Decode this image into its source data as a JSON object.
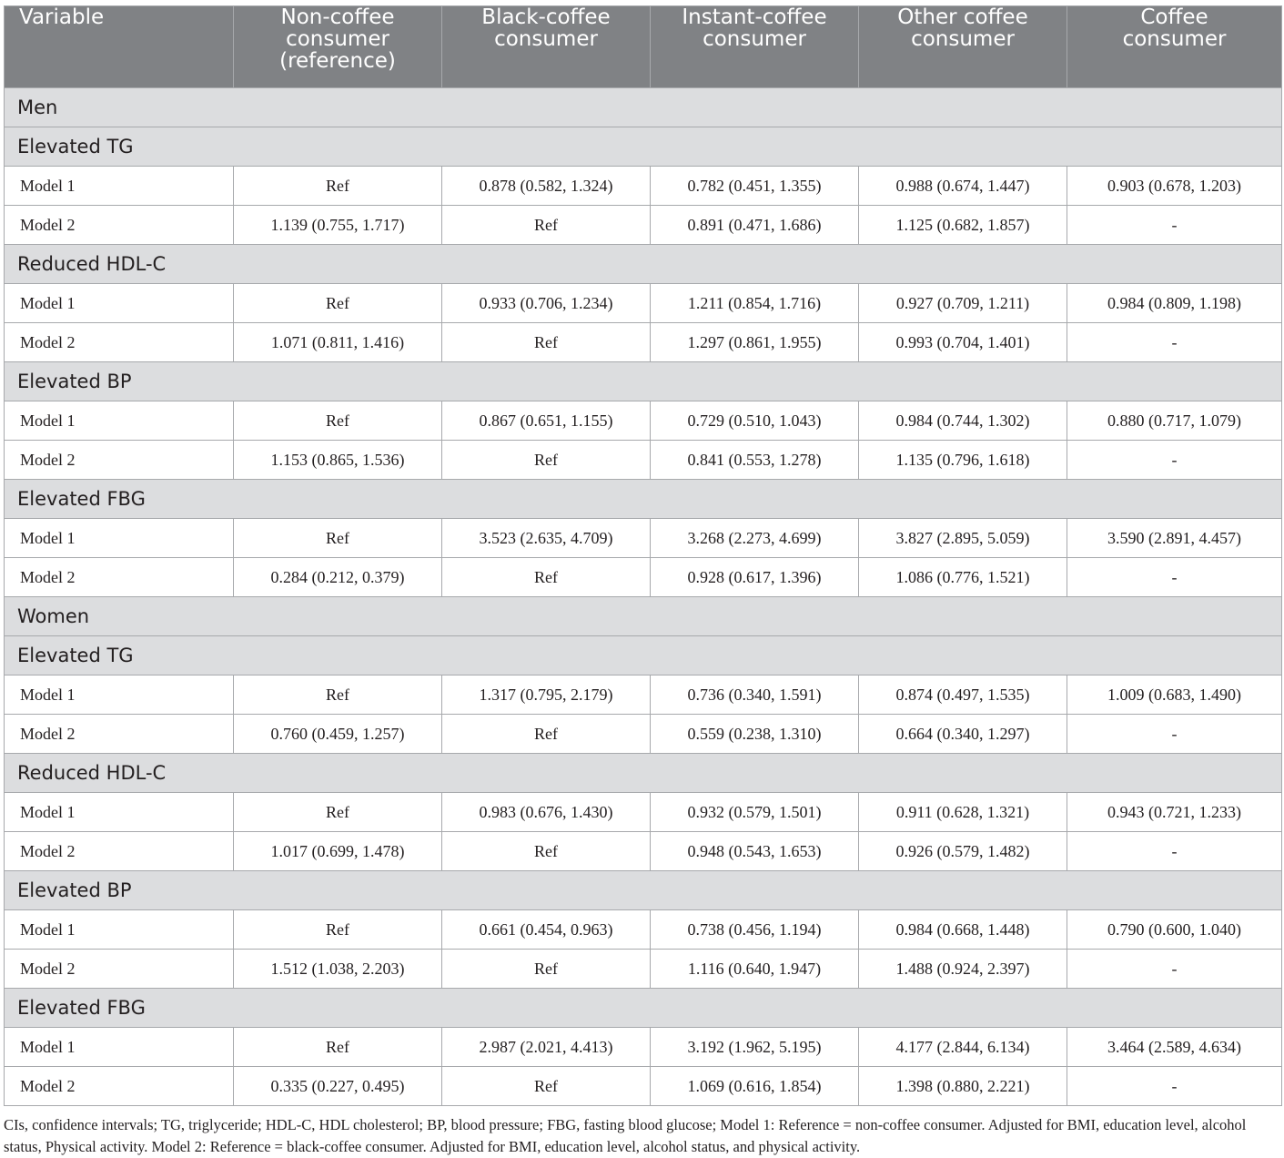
{
  "table": {
    "headers": [
      "Variable",
      "Non-coffee consumer (reference)",
      "Black-coffee consumer",
      "Instant-coffee consumer",
      "Other coffee consumer",
      "Coffee consumer"
    ],
    "header_lines": [
      [
        "Variable"
      ],
      [
        "Non-coffee",
        "consumer",
        "(reference)"
      ],
      [
        "Black-coffee",
        "consumer"
      ],
      [
        "Instant-coffee",
        "consumer"
      ],
      [
        "Other coffee",
        "consumer"
      ],
      [
        "Coffee",
        "consumer"
      ]
    ],
    "rows": [
      {
        "type": "group",
        "label": "Men"
      },
      {
        "type": "group",
        "label": "Elevated TG"
      },
      {
        "type": "data",
        "label": "Model 1",
        "cells": [
          "Ref",
          "0.878 (0.582, 1.324)",
          "0.782 (0.451, 1.355)",
          "0.988 (0.674, 1.447)",
          "0.903 (0.678, 1.203)"
        ]
      },
      {
        "type": "data",
        "label": "Model 2",
        "cells": [
          "1.139 (0.755, 1.717)",
          "Ref",
          "0.891 (0.471, 1.686)",
          "1.125 (0.682, 1.857)",
          "-"
        ]
      },
      {
        "type": "group",
        "label": "Reduced HDL-C"
      },
      {
        "type": "data",
        "label": "Model 1",
        "cells": [
          "Ref",
          "0.933 (0.706, 1.234)",
          "1.211 (0.854, 1.716)",
          "0.927 (0.709, 1.211)",
          "0.984 (0.809, 1.198)"
        ]
      },
      {
        "type": "data",
        "label": "Model 2",
        "cells": [
          "1.071 (0.811, 1.416)",
          "Ref",
          "1.297 (0.861, 1.955)",
          "0.993 (0.704, 1.401)",
          "-"
        ]
      },
      {
        "type": "group",
        "label": "Elevated BP"
      },
      {
        "type": "data",
        "label": "Model 1",
        "cells": [
          "Ref",
          "0.867 (0.651, 1.155)",
          "0.729 (0.510, 1.043)",
          "0.984 (0.744, 1.302)",
          "0.880 (0.717, 1.079)"
        ]
      },
      {
        "type": "data",
        "label": "Model 2",
        "cells": [
          "1.153 (0.865, 1.536)",
          "Ref",
          "0.841 (0.553, 1.278)",
          "1.135 (0.796, 1.618)",
          "-"
        ]
      },
      {
        "type": "group",
        "label": "Elevated FBG"
      },
      {
        "type": "data",
        "label": "Model 1",
        "cells": [
          "Ref",
          "3.523 (2.635, 4.709)",
          "3.268 (2.273, 4.699)",
          "3.827 (2.895, 5.059)",
          "3.590 (2.891, 4.457)"
        ]
      },
      {
        "type": "data",
        "label": "Model 2",
        "cells": [
          "0.284 (0.212, 0.379)",
          "Ref",
          "0.928 (0.617, 1.396)",
          "1.086 (0.776, 1.521)",
          "-"
        ]
      },
      {
        "type": "group",
        "label": "Women"
      },
      {
        "type": "group",
        "label": "Elevated TG"
      },
      {
        "type": "data",
        "label": "Model 1",
        "cells": [
          "Ref",
          "1.317 (0.795, 2.179)",
          "0.736 (0.340, 1.591)",
          "0.874 (0.497, 1.535)",
          "1.009 (0.683, 1.490)"
        ]
      },
      {
        "type": "data",
        "label": "Model 2",
        "cells": [
          "0.760 (0.459, 1.257)",
          "Ref",
          "0.559 (0.238, 1.310)",
          "0.664 (0.340, 1.297)",
          "-"
        ]
      },
      {
        "type": "group",
        "label": "Reduced HDL-C"
      },
      {
        "type": "data",
        "label": "Model 1",
        "cells": [
          "Ref",
          "0.983 (0.676, 1.430)",
          "0.932 (0.579, 1.501)",
          "0.911 (0.628, 1.321)",
          "0.943 (0.721, 1.233)"
        ]
      },
      {
        "type": "data",
        "label": "Model 2",
        "cells": [
          "1.017 (0.699, 1.478)",
          "Ref",
          "0.948 (0.543, 1.653)",
          "0.926 (0.579, 1.482)",
          "-"
        ]
      },
      {
        "type": "group",
        "label": "Elevated BP"
      },
      {
        "type": "data",
        "label": "Model 1",
        "cells": [
          "Ref",
          "0.661 (0.454, 0.963)",
          "0.738 (0.456, 1.194)",
          "0.984 (0.668, 1.448)",
          "0.790 (0.600, 1.040)"
        ]
      },
      {
        "type": "data",
        "label": "Model 2",
        "cells": [
          "1.512 (1.038, 2.203)",
          "Ref",
          "1.116 (0.640, 1.947)",
          "1.488 (0.924, 2.397)",
          "-"
        ]
      },
      {
        "type": "group",
        "label": "Elevated FBG"
      },
      {
        "type": "data",
        "label": "Model 1",
        "cells": [
          "Ref",
          "2.987 (2.021, 4.413)",
          "3.192 (1.962, 5.195)",
          "4.177 (2.844, 6.134)",
          "3.464 (2.589, 4.634)"
        ]
      },
      {
        "type": "data",
        "label": "Model 2",
        "cells": [
          "0.335 (0.227, 0.495)",
          "Ref",
          "1.069 (0.616, 1.854)",
          "1.398 (0.880, 2.221)",
          "-"
        ]
      }
    ]
  },
  "footnote": "CIs, confidence intervals; TG, triglyceride; HDL-C, HDL cholesterol; BP, blood pressure; FBG, fasting blood glucose; Model 1: Reference = non-coffee consumer. Adjusted for BMI, education level, alcohol status, Physical activity. Model 2: Reference = black-coffee consumer. Adjusted for BMI, education level, alcohol status, and physical activity."
}
